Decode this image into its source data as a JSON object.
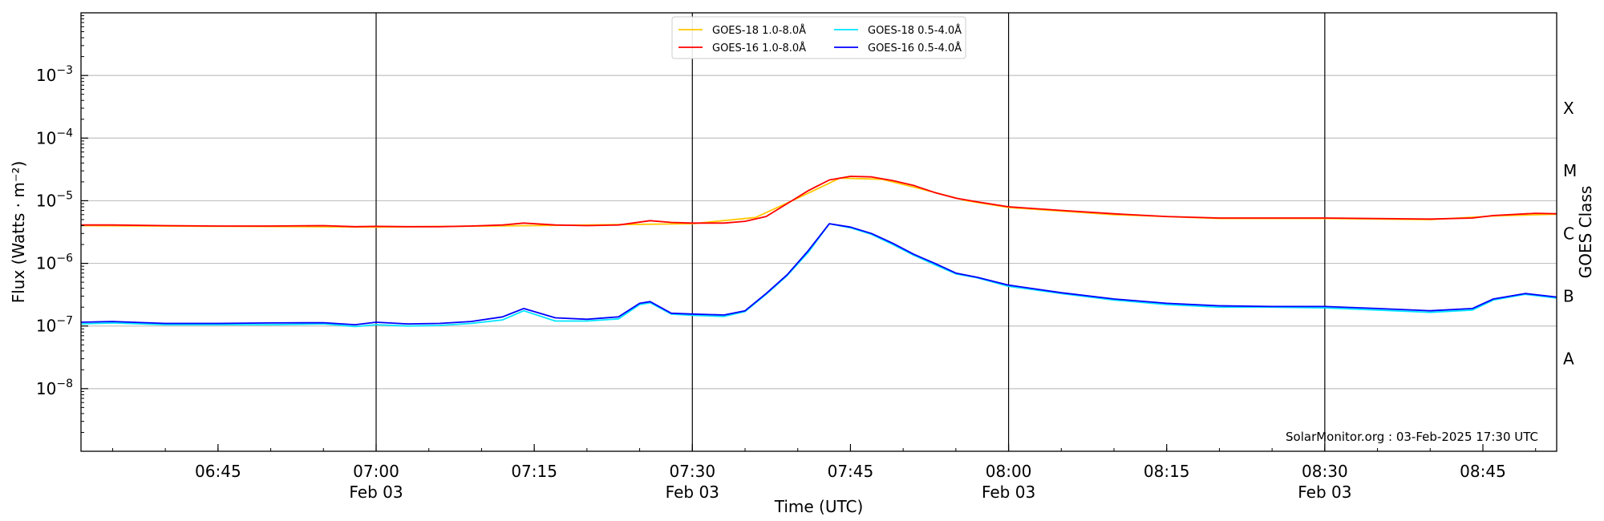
{
  "chart_data": {
    "type": "line",
    "xlabel": "Time (UTC)",
    "ylabel": "Flux (Watts · m⁻²)",
    "y2label": "GOES Class",
    "y_scale": "log",
    "ylim": [
      1e-09,
      0.01
    ],
    "xlim": [
      "06:32",
      "08:52"
    ],
    "grid": "horizontal at decades; vertical lines at half-hours",
    "legend_placement": "top-center",
    "y_ticks": [
      {
        "value": 1e-08,
        "base": "10",
        "exp": "−8"
      },
      {
        "value": 1e-07,
        "base": "10",
        "exp": "−7"
      },
      {
        "value": 1e-06,
        "base": "10",
        "exp": "−6"
      },
      {
        "value": 1e-05,
        "base": "10",
        "exp": "−5"
      },
      {
        "value": 0.0001,
        "base": "10",
        "exp": "−4"
      },
      {
        "value": 0.001,
        "base": "10",
        "exp": "−3"
      }
    ],
    "x_ticks": [
      {
        "time": "06:45",
        "label": "06:45",
        "date": ""
      },
      {
        "time": "07:00",
        "label": "07:00",
        "date": "Feb 03"
      },
      {
        "time": "07:15",
        "label": "07:15",
        "date": ""
      },
      {
        "time": "07:30",
        "label": "07:30",
        "date": "Feb 03"
      },
      {
        "time": "07:45",
        "label": "07:45",
        "date": ""
      },
      {
        "time": "08:00",
        "label": "08:00",
        "date": "Feb 03"
      },
      {
        "time": "08:15",
        "label": "08:15",
        "date": ""
      },
      {
        "time": "08:30",
        "label": "08:30",
        "date": "Feb 03"
      },
      {
        "time": "08:45",
        "label": "08:45",
        "date": ""
      }
    ],
    "class_labels": [
      {
        "label": "A",
        "value": 3e-08
      },
      {
        "label": "B",
        "value": 3e-07
      },
      {
        "label": "C",
        "value": 3e-06
      },
      {
        "label": "M",
        "value": 3e-05
      },
      {
        "label": "X",
        "value": 0.0003
      }
    ],
    "credit": "SolarMonitor.org : 03-Feb-2025 17:30 UTC",
    "series": [
      {
        "name": "GOES-16 1.0-8.0Å",
        "color": "#ff0000",
        "points": [
          [
            "06:32",
            4.1e-06
          ],
          [
            "06:35",
            4.1e-06
          ],
          [
            "06:40",
            4e-06
          ],
          [
            "06:45",
            3.95e-06
          ],
          [
            "06:50",
            3.95e-06
          ],
          [
            "06:55",
            4e-06
          ],
          [
            "06:58",
            3.85e-06
          ],
          [
            "07:00",
            3.9e-06
          ],
          [
            "07:03",
            3.85e-06
          ],
          [
            "07:06",
            3.85e-06
          ],
          [
            "07:09",
            3.95e-06
          ],
          [
            "07:12",
            4.1e-06
          ],
          [
            "07:14",
            4.4e-06
          ],
          [
            "07:17",
            4.1e-06
          ],
          [
            "07:20",
            4e-06
          ],
          [
            "07:23",
            4.1e-06
          ],
          [
            "07:26",
            4.8e-06
          ],
          [
            "07:28",
            4.5e-06
          ],
          [
            "07:30",
            4.4e-06
          ],
          [
            "07:33",
            4.4e-06
          ],
          [
            "07:35",
            4.7e-06
          ],
          [
            "07:37",
            5.6e-06
          ],
          [
            "07:39",
            9e-06
          ],
          [
            "07:41",
            1.45e-05
          ],
          [
            "07:43",
            2.15e-05
          ],
          [
            "07:45",
            2.45e-05
          ],
          [
            "07:47",
            2.4e-05
          ],
          [
            "07:49",
            2.1e-05
          ],
          [
            "07:51",
            1.75e-05
          ],
          [
            "07:53",
            1.35e-05
          ],
          [
            "07:55",
            1.1e-05
          ],
          [
            "07:57",
            9.6e-06
          ],
          [
            "08:00",
            8e-06
          ],
          [
            "08:05",
            7e-06
          ],
          [
            "08:10",
            6.2e-06
          ],
          [
            "08:15",
            5.6e-06
          ],
          [
            "08:20",
            5.3e-06
          ],
          [
            "08:25",
            5.3e-06
          ],
          [
            "08:30",
            5.3e-06
          ],
          [
            "08:35",
            5.2e-06
          ],
          [
            "08:40",
            5.1e-06
          ],
          [
            "08:44",
            5.3e-06
          ],
          [
            "08:46",
            5.8e-06
          ],
          [
            "08:50",
            6.3e-06
          ],
          [
            "08:52",
            6.2e-06
          ]
        ]
      },
      {
        "name": "GOES-18 1.0-8.0Å",
        "color": "#ffc800",
        "points": [
          [
            "06:32",
            4e-06
          ],
          [
            "06:45",
            3.9e-06
          ],
          [
            "07:00",
            3.8e-06
          ],
          [
            "07:15",
            4e-06
          ],
          [
            "07:30",
            4.3e-06
          ],
          [
            "07:36",
            5.4e-06
          ],
          [
            "07:40",
            1.1e-05
          ],
          [
            "07:44",
            2.3e-05
          ],
          [
            "07:48",
            2.2e-05
          ],
          [
            "07:52",
            1.5e-05
          ],
          [
            "07:56",
            1e-05
          ],
          [
            "08:00",
            7.8e-06
          ],
          [
            "08:10",
            6e-06
          ],
          [
            "08:20",
            5.2e-06
          ],
          [
            "08:30",
            5.2e-06
          ],
          [
            "08:40",
            5e-06
          ],
          [
            "08:46",
            5.7e-06
          ],
          [
            "08:52",
            6.1e-06
          ]
        ]
      },
      {
        "name": "GOES-18 0.5-4.0Å",
        "color": "#00e5ff",
        "points": [
          [
            "06:32",
            1.08e-07
          ],
          [
            "06:35",
            1.12e-07
          ],
          [
            "06:40",
            1.05e-07
          ],
          [
            "06:45",
            1.05e-07
          ],
          [
            "06:50",
            1.05e-07
          ],
          [
            "06:55",
            1.08e-07
          ],
          [
            "06:58",
            9.8e-08
          ],
          [
            "07:00",
            1.05e-07
          ],
          [
            "07:03",
            1e-07
          ],
          [
            "07:06",
            1.02e-07
          ],
          [
            "07:09",
            1.1e-07
          ],
          [
            "07:12",
            1.25e-07
          ],
          [
            "07:14",
            1.75e-07
          ],
          [
            "07:17",
            1.2e-07
          ],
          [
            "07:20",
            1.2e-07
          ],
          [
            "07:23",
            1.3e-07
          ],
          [
            "07:25",
            2.2e-07
          ],
          [
            "07:26",
            2.35e-07
          ],
          [
            "07:28",
            1.55e-07
          ],
          [
            "07:30",
            1.48e-07
          ],
          [
            "07:33",
            1.42e-07
          ],
          [
            "07:35",
            1.7e-07
          ],
          [
            "07:37",
            3.2e-07
          ],
          [
            "07:39",
            6.4e-07
          ],
          [
            "07:41",
            1.5e-06
          ],
          [
            "07:43",
            4.3e-06
          ],
          [
            "07:45",
            3.7e-06
          ],
          [
            "07:47",
            2.9e-06
          ],
          [
            "07:49",
            2e-06
          ],
          [
            "07:51",
            1.35e-06
          ],
          [
            "07:53",
            9.5e-07
          ],
          [
            "07:55",
            6.8e-07
          ],
          [
            "07:57",
            5.9e-07
          ],
          [
            "08:00",
            4.3e-07
          ],
          [
            "08:05",
            3.3e-07
          ],
          [
            "08:10",
            2.6e-07
          ],
          [
            "08:15",
            2.2e-07
          ],
          [
            "08:20",
            2e-07
          ],
          [
            "08:25",
            2e-07
          ],
          [
            "08:30",
            1.95e-07
          ],
          [
            "08:35",
            1.8e-07
          ],
          [
            "08:40",
            1.65e-07
          ],
          [
            "08:44",
            1.8e-07
          ],
          [
            "08:46",
            2.6e-07
          ],
          [
            "08:49",
            3.2e-07
          ],
          [
            "08:52",
            2.8e-07
          ]
        ]
      },
      {
        "name": "GOES-16 0.5-4.0Å",
        "color": "#0000ff",
        "points": [
          [
            "06:32",
            1.15e-07
          ],
          [
            "06:35",
            1.18e-07
          ],
          [
            "06:40",
            1.1e-07
          ],
          [
            "06:45",
            1.1e-07
          ],
          [
            "06:50",
            1.12e-07
          ],
          [
            "06:55",
            1.13e-07
          ],
          [
            "06:58",
            1.05e-07
          ],
          [
            "07:00",
            1.15e-07
          ],
          [
            "07:03",
            1.08e-07
          ],
          [
            "07:06",
            1.1e-07
          ],
          [
            "07:09",
            1.18e-07
          ],
          [
            "07:12",
            1.4e-07
          ],
          [
            "07:14",
            1.9e-07
          ],
          [
            "07:17",
            1.35e-07
          ],
          [
            "07:20",
            1.28e-07
          ],
          [
            "07:23",
            1.4e-07
          ],
          [
            "07:25",
            2.3e-07
          ],
          [
            "07:26",
            2.45e-07
          ],
          [
            "07:28",
            1.6e-07
          ],
          [
            "07:30",
            1.55e-07
          ],
          [
            "07:33",
            1.5e-07
          ],
          [
            "07:35",
            1.75e-07
          ],
          [
            "07:37",
            3.3e-07
          ],
          [
            "07:39",
            6.6e-07
          ],
          [
            "07:41",
            1.6e-06
          ],
          [
            "07:43",
            4.3e-06
          ],
          [
            "07:45",
            3.8e-06
          ],
          [
            "07:47",
            3e-06
          ],
          [
            "07:49",
            2.1e-06
          ],
          [
            "07:51",
            1.4e-06
          ],
          [
            "07:53",
            1e-06
          ],
          [
            "07:55",
            7e-07
          ],
          [
            "07:57",
            6e-07
          ],
          [
            "08:00",
            4.5e-07
          ],
          [
            "08:05",
            3.4e-07
          ],
          [
            "08:10",
            2.7e-07
          ],
          [
            "08:15",
            2.3e-07
          ],
          [
            "08:20",
            2.1e-07
          ],
          [
            "08:25",
            2.05e-07
          ],
          [
            "08:30",
            2.05e-07
          ],
          [
            "08:35",
            1.9e-07
          ],
          [
            "08:40",
            1.75e-07
          ],
          [
            "08:44",
            1.9e-07
          ],
          [
            "08:46",
            2.7e-07
          ],
          [
            "08:49",
            3.3e-07
          ],
          [
            "08:52",
            2.9e-07
          ]
        ]
      }
    ],
    "legend": [
      {
        "series": 1,
        "label": "GOES-18 1.0-8.0Å"
      },
      {
        "series": 2,
        "label": "GOES-18 0.5-4.0Å"
      },
      {
        "series": 0,
        "label": "GOES-16 1.0-8.0Å"
      },
      {
        "series": 3,
        "label": "GOES-16 0.5-4.0Å"
      }
    ]
  }
}
